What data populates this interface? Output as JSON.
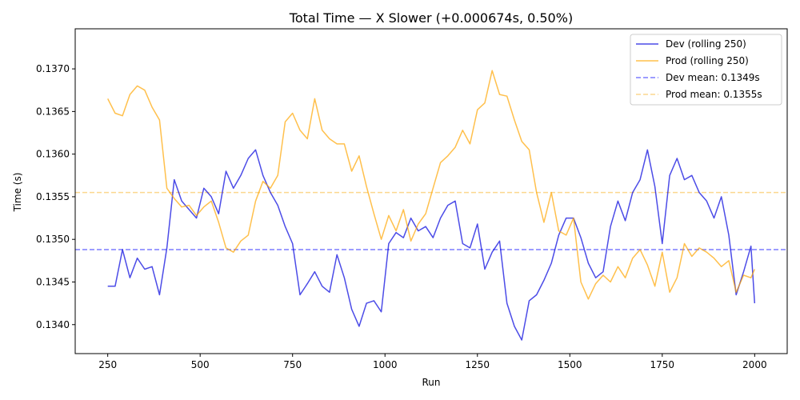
{
  "chart_data": {
    "type": "line",
    "title": "Total Time — X Slower (+0.000674s, 0.50%)",
    "xlabel": "Run",
    "ylabel": "Time (s)",
    "xlim": [
      162,
      2088
    ],
    "ylim": [
      0.13366,
      0.13747
    ],
    "xticks": [
      250,
      500,
      750,
      1000,
      1250,
      1500,
      1750,
      2000
    ],
    "xtick_labels": [
      "250",
      "500",
      "750",
      "1000",
      "1250",
      "1500",
      "1750",
      "2000"
    ],
    "yticks": [
      0.134,
      0.1345,
      0.135,
      0.1355,
      0.136,
      0.1365,
      0.137
    ],
    "ytick_labels": [
      "0.1340",
      "0.1345",
      "0.1350",
      "0.1355",
      "0.1360",
      "0.1365",
      "0.1370"
    ],
    "legend_position": "top-right",
    "series": [
      {
        "name": "Dev (rolling 250)",
        "color": "#0000dd",
        "x": [
          250,
          270,
          290,
          310,
          330,
          350,
          370,
          390,
          410,
          430,
          450,
          470,
          490,
          510,
          530,
          550,
          570,
          590,
          610,
          630,
          650,
          670,
          690,
          710,
          730,
          750,
          770,
          790,
          810,
          830,
          850,
          870,
          890,
          910,
          930,
          950,
          970,
          990,
          1010,
          1030,
          1050,
          1070,
          1090,
          1110,
          1130,
          1150,
          1170,
          1190,
          1210,
          1230,
          1250,
          1270,
          1290,
          1310,
          1330,
          1350,
          1370,
          1390,
          1410,
          1430,
          1450,
          1470,
          1490,
          1510,
          1530,
          1550,
          1570,
          1590,
          1610,
          1630,
          1650,
          1670,
          1690,
          1710,
          1730,
          1750,
          1770,
          1790,
          1810,
          1830,
          1850,
          1870,
          1890,
          1910,
          1930,
          1950,
          1970,
          1990,
          2000
        ],
        "y": [
          0.13445,
          0.13445,
          0.13488,
          0.13455,
          0.13478,
          0.13465,
          0.13468,
          0.13435,
          0.1349,
          0.1357,
          0.13545,
          0.13535,
          0.13525,
          0.1356,
          0.1355,
          0.1353,
          0.1358,
          0.1356,
          0.13575,
          0.13595,
          0.13605,
          0.13575,
          0.13555,
          0.1354,
          0.13515,
          0.13495,
          0.13435,
          0.13448,
          0.13462,
          0.13445,
          0.13438,
          0.13482,
          0.13455,
          0.13418,
          0.13398,
          0.13425,
          0.13428,
          0.13415,
          0.13495,
          0.13508,
          0.13502,
          0.13525,
          0.1351,
          0.13515,
          0.13502,
          0.13525,
          0.1354,
          0.13545,
          0.13495,
          0.1349,
          0.13518,
          0.13465,
          0.13485,
          0.13498,
          0.13425,
          0.13398,
          0.13382,
          0.13428,
          0.13435,
          0.13452,
          0.13472,
          0.13505,
          0.13525,
          0.13525,
          0.13502,
          0.13472,
          0.13455,
          0.13462,
          0.13515,
          0.13545,
          0.13522,
          0.13555,
          0.1357,
          0.13605,
          0.13562,
          0.13495,
          0.13575,
          0.13595,
          0.1357,
          0.13575,
          0.13555,
          0.13545,
          0.13525,
          0.1355,
          0.13505,
          0.13435,
          0.13462,
          0.13492,
          0.13425
        ]
      },
      {
        "name": "Prod (rolling 250)",
        "color": "#ffa500",
        "x": [
          250,
          270,
          290,
          310,
          330,
          350,
          370,
          390,
          410,
          430,
          450,
          470,
          490,
          510,
          530,
          550,
          570,
          590,
          610,
          630,
          650,
          670,
          690,
          710,
          730,
          750,
          770,
          790,
          810,
          830,
          850,
          870,
          890,
          910,
          930,
          950,
          970,
          990,
          1010,
          1030,
          1050,
          1070,
          1090,
          1110,
          1130,
          1150,
          1170,
          1190,
          1210,
          1230,
          1250,
          1270,
          1290,
          1310,
          1330,
          1350,
          1370,
          1390,
          1410,
          1430,
          1450,
          1470,
          1490,
          1510,
          1530,
          1550,
          1570,
          1590,
          1610,
          1630,
          1650,
          1670,
          1690,
          1710,
          1730,
          1750,
          1770,
          1790,
          1810,
          1830,
          1850,
          1870,
          1890,
          1910,
          1930,
          1950,
          1970,
          1990,
          2000
        ],
        "y": [
          0.13665,
          0.13648,
          0.13645,
          0.1367,
          0.1368,
          0.13675,
          0.13655,
          0.1364,
          0.1356,
          0.13548,
          0.13538,
          0.1354,
          0.13528,
          0.13538,
          0.13545,
          0.1352,
          0.1349,
          0.13485,
          0.13498,
          0.13505,
          0.13545,
          0.13568,
          0.1356,
          0.13575,
          0.13638,
          0.13648,
          0.13628,
          0.13618,
          0.13665,
          0.13628,
          0.13618,
          0.13612,
          0.13612,
          0.1358,
          0.13598,
          0.13562,
          0.1353,
          0.135,
          0.13528,
          0.1351,
          0.13535,
          0.13498,
          0.13518,
          0.1353,
          0.1356,
          0.1359,
          0.13598,
          0.13608,
          0.13628,
          0.13612,
          0.13652,
          0.1366,
          0.13698,
          0.1367,
          0.13668,
          0.1364,
          0.13615,
          0.13605,
          0.13555,
          0.1352,
          0.13555,
          0.1351,
          0.13505,
          0.13525,
          0.1345,
          0.1343,
          0.13448,
          0.13458,
          0.1345,
          0.13468,
          0.13455,
          0.13478,
          0.13488,
          0.1347,
          0.13445,
          0.13485,
          0.13438,
          0.13455,
          0.13495,
          0.1348,
          0.1349,
          0.13485,
          0.13478,
          0.13468,
          0.13475,
          0.13438,
          0.13458,
          0.13455,
          0.13465
        ]
      }
    ],
    "reference_lines": [
      {
        "name": "Dev mean: 0.1349s",
        "y": 0.13488,
        "color": "#7b7bff"
      },
      {
        "name": "Prod mean: 0.1355s",
        "y": 0.13555,
        "color": "#fbd78f"
      }
    ]
  }
}
